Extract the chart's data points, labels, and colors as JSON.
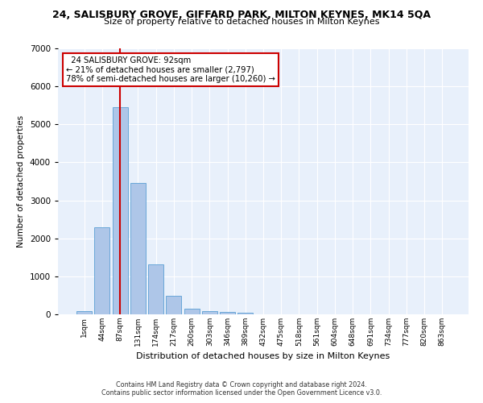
{
  "title": "24, SALISBURY GROVE, GIFFARD PARK, MILTON KEYNES, MK14 5QA",
  "subtitle": "Size of property relative to detached houses in Milton Keynes",
  "xlabel": "Distribution of detached houses by size in Milton Keynes",
  "ylabel": "Number of detached properties",
  "footer_line1": "Contains HM Land Registry data © Crown copyright and database right 2024.",
  "footer_line2": "Contains public sector information licensed under the Open Government Licence v3.0.",
  "bar_labels": [
    "1sqm",
    "44sqm",
    "87sqm",
    "131sqm",
    "174sqm",
    "217sqm",
    "260sqm",
    "303sqm",
    "346sqm",
    "389sqm",
    "432sqm",
    "475sqm",
    "518sqm",
    "561sqm",
    "604sqm",
    "648sqm",
    "691sqm",
    "734sqm",
    "777sqm",
    "820sqm",
    "863sqm"
  ],
  "bar_values": [
    80,
    2300,
    5450,
    3450,
    1320,
    480,
    155,
    90,
    55,
    35,
    0,
    0,
    0,
    0,
    0,
    0,
    0,
    0,
    0,
    0,
    0
  ],
  "bar_color": "#aec6e8",
  "bar_edge_color": "#5a9fd4",
  "property_label": "24 SALISBURY GROVE: 92sqm",
  "pct_smaller": "21% of detached houses are smaller (2,797)",
  "pct_larger": "78% of semi-detached houses are larger (10,260)",
  "vline_color": "#cc0000",
  "annotation_box_color": "#cc0000",
  "ylim": [
    0,
    7000
  ],
  "yticks": [
    0,
    1000,
    2000,
    3000,
    4000,
    5000,
    6000,
    7000
  ],
  "background_color": "#e8f0fb",
  "grid_color": "#ffffff",
  "vline_x": 2.0
}
